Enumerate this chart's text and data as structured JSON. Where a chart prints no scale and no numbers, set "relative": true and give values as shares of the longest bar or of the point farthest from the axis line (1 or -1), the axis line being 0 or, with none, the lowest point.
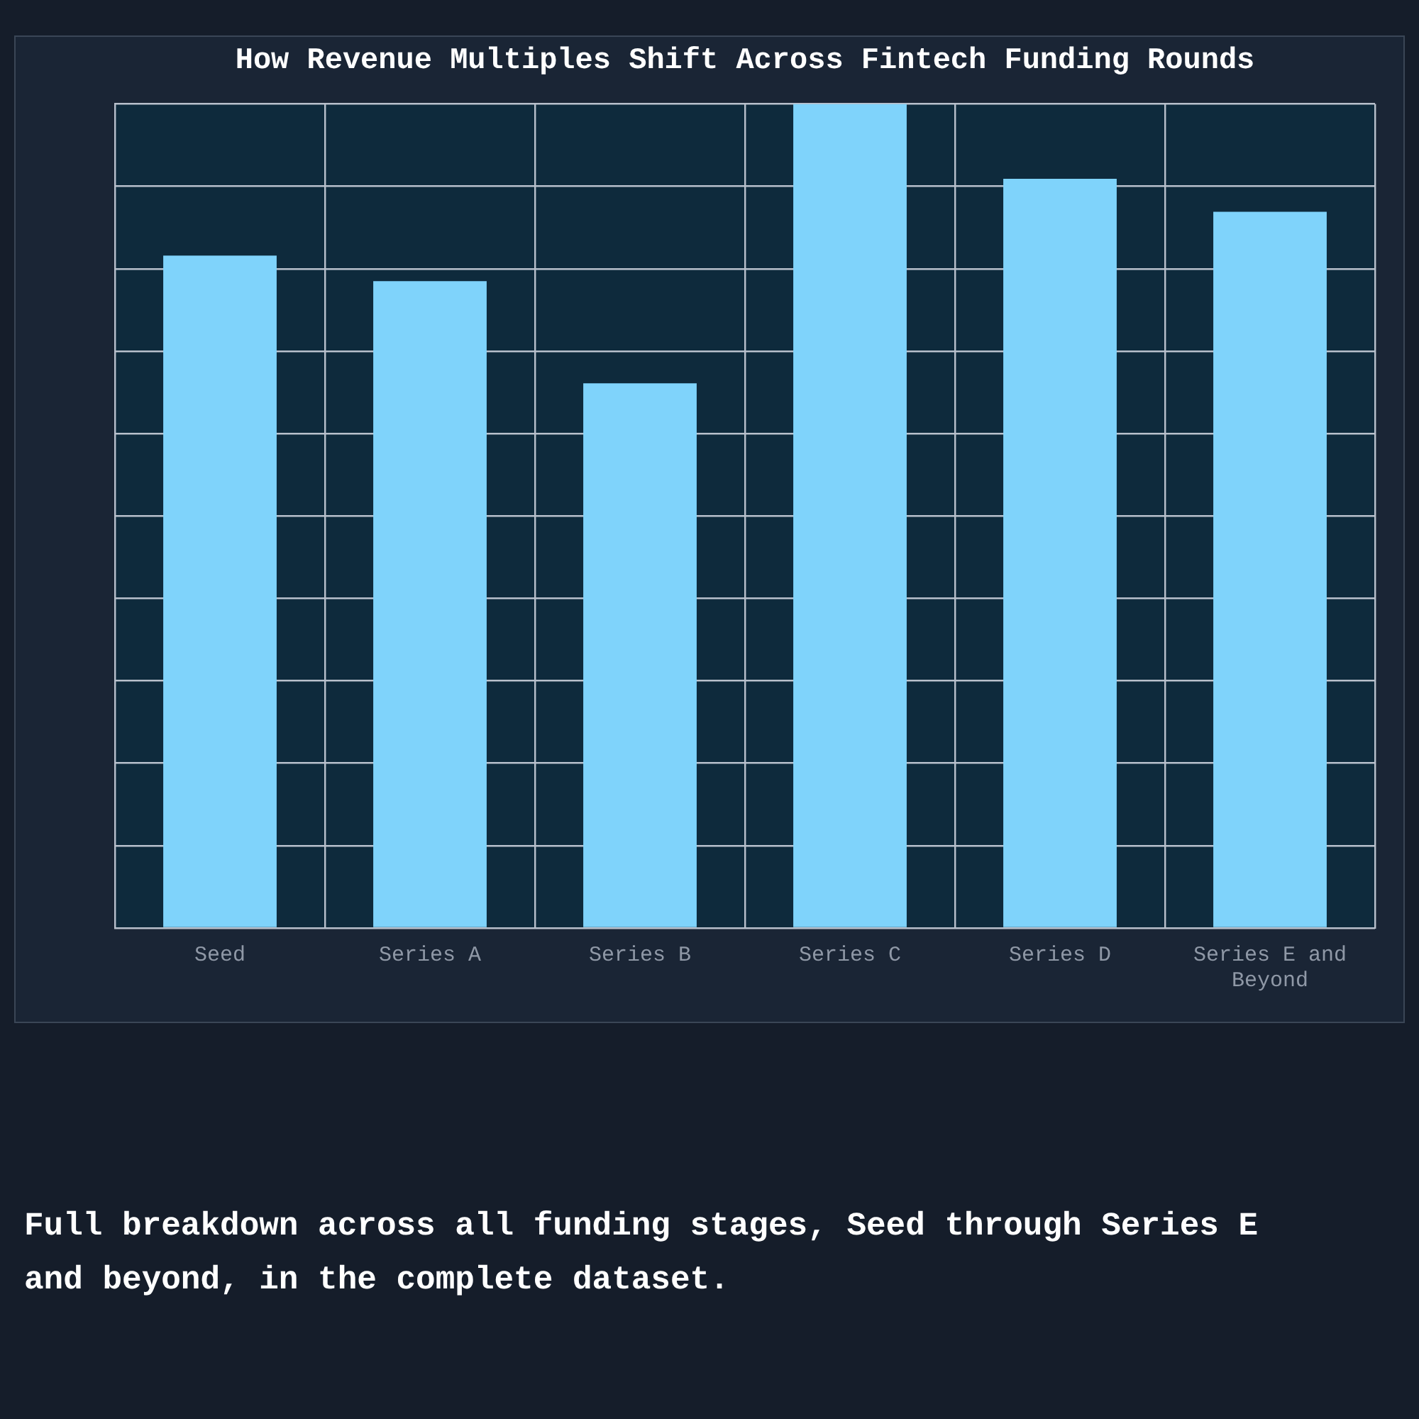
{
  "chart_data": {
    "type": "bar",
    "title": "How Revenue Multiples Shift Across Fintech Funding Rounds",
    "categories": [
      "Seed",
      "Series A",
      "Series B",
      "Series C",
      "Series D",
      "Series E and Beyond"
    ],
    "values": [
      0.816,
      0.785,
      0.661,
      1,
      0.909,
      0.869
    ],
    "color": "#7fd3fb",
    "relative": true,
    "grid": true,
    "annotations": [
      "Full breakdown across all funding stages, Seed through Series E and beyond, in the complete dataset."
    ]
  }
}
